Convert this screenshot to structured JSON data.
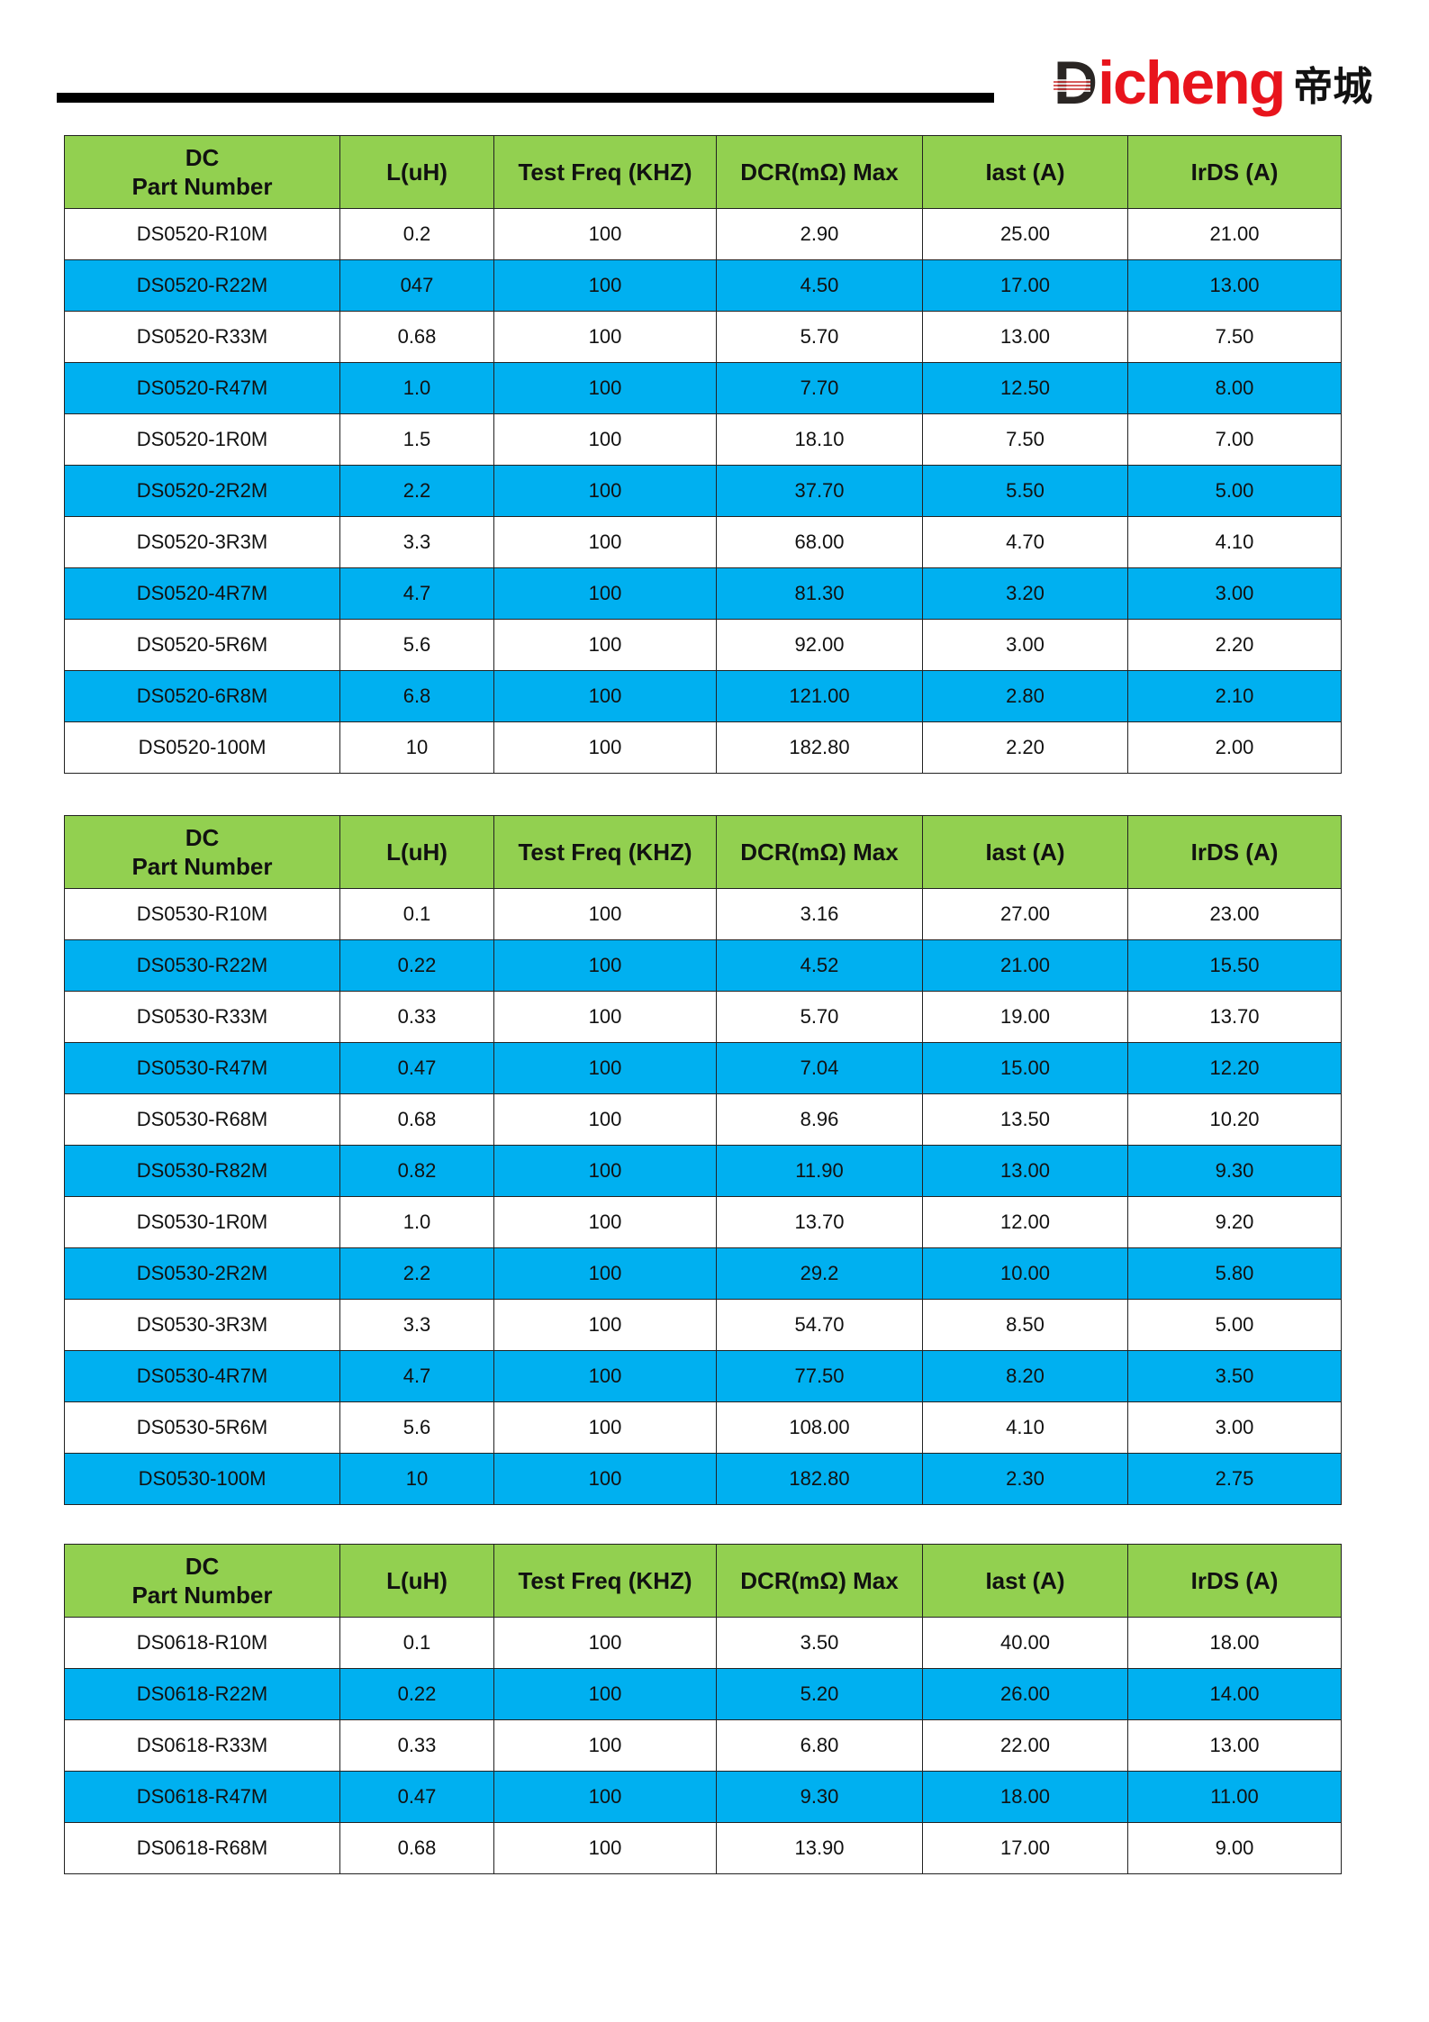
{
  "logo": {
    "text_latin_first": "D",
    "text_latin_rest": "icheng",
    "text_cn": "帝城",
    "brand_color": "#e8141c"
  },
  "colors": {
    "header": "#92d050",
    "alt_row": "#00b0f0"
  },
  "headers": [
    "DC",
    "Part Number",
    "L(uH)",
    "Test Freq (KHZ)",
    "DCR(mΩ) Max",
    "Iast (A)",
    "IrDS (A)"
  ],
  "tables": [
    {
      "rows": [
        [
          "DS0520-R10M",
          "0.2",
          "100",
          "2.90",
          "25.00",
          "21.00"
        ],
        [
          "DS0520-R22M",
          "047",
          "100",
          "4.50",
          "17.00",
          "13.00"
        ],
        [
          "DS0520-R33M",
          "0.68",
          "100",
          "5.70",
          "13.00",
          "7.50"
        ],
        [
          "DS0520-R47M",
          "1.0",
          "100",
          "7.70",
          "12.50",
          "8.00"
        ],
        [
          "DS0520-1R0M",
          "1.5",
          "100",
          "18.10",
          "7.50",
          "7.00"
        ],
        [
          "DS0520-2R2M",
          "2.2",
          "100",
          "37.70",
          "5.50",
          "5.00"
        ],
        [
          "DS0520-3R3M",
          "3.3",
          "100",
          "68.00",
          "4.70",
          "4.10"
        ],
        [
          "DS0520-4R7M",
          "4.7",
          "100",
          "81.30",
          "3.20",
          "3.00"
        ],
        [
          "DS0520-5R6M",
          "5.6",
          "100",
          "92.00",
          "3.00",
          "2.20"
        ],
        [
          "DS0520-6R8M",
          "6.8",
          "100",
          "121.00",
          "2.80",
          "2.10"
        ],
        [
          "DS0520-100M",
          "10",
          "100",
          "182.80",
          "2.20",
          "2.00"
        ]
      ]
    },
    {
      "rows": [
        [
          "DS0530-R10M",
          "0.1",
          "100",
          "3.16",
          "27.00",
          "23.00"
        ],
        [
          "DS0530-R22M",
          "0.22",
          "100",
          "4.52",
          "21.00",
          "15.50"
        ],
        [
          "DS0530-R33M",
          "0.33",
          "100",
          "5.70",
          "19.00",
          "13.70"
        ],
        [
          "DS0530-R47M",
          "0.47",
          "100",
          "7.04",
          "15.00",
          "12.20"
        ],
        [
          "DS0530-R68M",
          "0.68",
          "100",
          "8.96",
          "13.50",
          "10.20"
        ],
        [
          "DS0530-R82M",
          "0.82",
          "100",
          "11.90",
          "13.00",
          "9.30"
        ],
        [
          "DS0530-1R0M",
          "1.0",
          "100",
          "13.70",
          "12.00",
          "9.20"
        ],
        [
          "DS0530-2R2M",
          "2.2",
          "100",
          "29.2",
          "10.00",
          "5.80"
        ],
        [
          "DS0530-3R3M",
          "3.3",
          "100",
          "54.70",
          "8.50",
          "5.00"
        ],
        [
          "DS0530-4R7M",
          "4.7",
          "100",
          "77.50",
          "8.20",
          "3.50"
        ],
        [
          "DS0530-5R6M",
          "5.6",
          "100",
          "108.00",
          "4.10",
          "3.00"
        ],
        [
          "DS0530-100M",
          "10",
          "100",
          "182.80",
          "2.30",
          "2.75"
        ]
      ]
    },
    {
      "rows": [
        [
          "DS0618-R10M",
          "0.1",
          "100",
          "3.50",
          "40.00",
          "18.00"
        ],
        [
          "DS0618-R22M",
          "0.22",
          "100",
          "5.20",
          "26.00",
          "14.00"
        ],
        [
          "DS0618-R33M",
          "0.33",
          "100",
          "6.80",
          "22.00",
          "13.00"
        ],
        [
          "DS0618-R47M",
          "0.47",
          "100",
          "9.30",
          "18.00",
          "11.00"
        ],
        [
          "DS0618-R68M",
          "0.68",
          "100",
          "13.90",
          "17.00",
          "9.00"
        ]
      ]
    }
  ]
}
